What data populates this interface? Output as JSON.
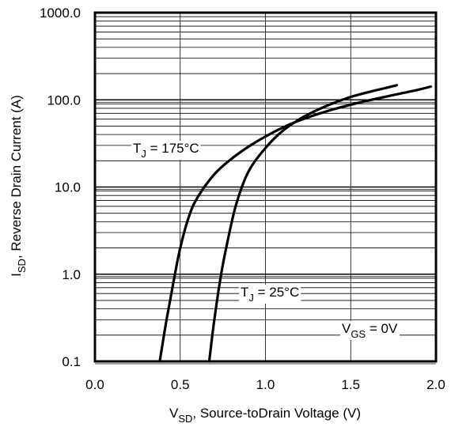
{
  "chart_data": {
    "type": "line",
    "xlabel_main": "V",
    "xlabel_sub": "SD",
    "xlabel_rest": ", Source-toDrain Voltage (V)",
    "ylabel_main": "I",
    "ylabel_sub": "SD",
    "ylabel_rest": ", Reverse Drain Current (A)",
    "xlim": [
      0.0,
      2.0
    ],
    "ylim": [
      0.1,
      1000.0
    ],
    "yscale": "log",
    "grid": true,
    "x_ticks": [
      "0.0",
      "0.5",
      "1.0",
      "1.5",
      "2.0"
    ],
    "y_ticks": [
      "0.1",
      "1.0",
      "10.0",
      "100.0",
      "1000.0"
    ],
    "series": [
      {
        "name": "T_J = 175°C",
        "x": [
          0.38,
          0.42,
          0.46,
          0.5,
          0.55,
          0.6,
          0.7,
          0.8,
          0.9,
          1.0,
          1.1,
          1.2,
          1.3,
          1.4,
          1.5,
          1.6,
          1.7,
          1.8,
          1.9,
          1.97
        ],
        "y": [
          0.1,
          0.3,
          0.8,
          2.0,
          4.5,
          7.5,
          14,
          21,
          29,
          38,
          48,
          58,
          68,
          78,
          88,
          98,
          108,
          119,
          131,
          142
        ]
      },
      {
        "name": "T_J = 25°C",
        "x": [
          0.67,
          0.7,
          0.74,
          0.78,
          0.83,
          0.9,
          1.0,
          1.1,
          1.2,
          1.3,
          1.4,
          1.5,
          1.6,
          1.7,
          1.77
        ],
        "y": [
          0.1,
          0.3,
          1.0,
          2.5,
          6.5,
          15,
          28,
          44,
          60,
          76,
          92,
          108,
          122,
          136,
          147
        ]
      }
    ],
    "annotations": [
      {
        "main": "T",
        "sub": "J",
        "rest": " = 175°C"
      },
      {
        "main": "T",
        "sub": "J",
        "rest": " = 25°C"
      },
      {
        "main": "V",
        "sub": "GS",
        "rest": " = 0V"
      }
    ]
  }
}
